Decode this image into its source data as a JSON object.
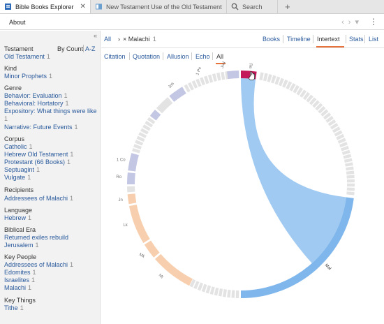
{
  "tabs": [
    {
      "label": "Bible Books Explorer",
      "close": "✕",
      "icon": "explorer-icon"
    },
    {
      "label": "New Testament Use of the Old Testament",
      "icon": "book-icon"
    },
    {
      "label": "Search",
      "icon": "search-icon"
    }
  ],
  "new_tab": "+",
  "toolbar": {
    "about": "About",
    "back": "‹",
    "forward": "›",
    "dropdown": "▾",
    "menu": "⋮"
  },
  "sidebar": {
    "collapse": "«",
    "sort_by_count": "By Count",
    "sort_az": "A-Z",
    "facets": [
      {
        "title": "Testament",
        "items": [
          {
            "label": "Old Testament",
            "count": "1"
          }
        ]
      },
      {
        "title": "Kind",
        "items": [
          {
            "label": "Minor Prophets",
            "count": "1"
          }
        ]
      },
      {
        "title": "Genre",
        "items": [
          {
            "label": "Behavior: Evaluation",
            "count": "1"
          },
          {
            "label": "Behavioral: Hortatory",
            "count": "1"
          },
          {
            "label": "Expository: What things were like",
            "count": "1"
          },
          {
            "label": "Narrative: Future Events",
            "count": "1"
          }
        ]
      },
      {
        "title": "Corpus",
        "items": [
          {
            "label": "Catholic",
            "count": "1"
          },
          {
            "label": "Hebrew Old Testament",
            "count": "1"
          },
          {
            "label": "Protestant (66 Books)",
            "count": "1"
          },
          {
            "label": "Septuagint",
            "count": "1"
          },
          {
            "label": "Vulgate",
            "count": "1"
          }
        ]
      },
      {
        "title": "Recipients",
        "items": [
          {
            "label": "Addressees of Malachi",
            "count": "1"
          }
        ]
      },
      {
        "title": "Language",
        "items": [
          {
            "label": "Hebrew",
            "count": "1"
          }
        ]
      },
      {
        "title": "Biblical Era",
        "items": [
          {
            "label": "Returned exiles rebuild",
            "count": ""
          },
          {
            "label": "Jerusalem",
            "count": "1"
          }
        ]
      },
      {
        "title": "Key People",
        "items": [
          {
            "label": "Addressees of Malachi",
            "count": "1"
          },
          {
            "label": "Edomites",
            "count": "1"
          },
          {
            "label": "Israelites",
            "count": "1"
          },
          {
            "label": "Malachi",
            "count": "1"
          }
        ]
      },
      {
        "title": "Key Things",
        "items": [
          {
            "label": "Tithe",
            "count": "1"
          }
        ]
      }
    ]
  },
  "main": {
    "breadcrumb": {
      "all": "All",
      "sep": "›",
      "current": "× Malachi",
      "count": "1"
    },
    "view_tabs": [
      "Books",
      "Timeline",
      "Intertext",
      "Stats",
      "List"
    ],
    "active_view": "Intertext",
    "filters": [
      "Citation",
      "Quotation",
      "Allusion",
      "Echo",
      "All"
    ],
    "active_filter": "All"
  },
  "chord": {
    "colors": {
      "ot": "#e3e3e3",
      "nt_epistles": "#c4c7e3",
      "gospels": "#f8cfae",
      "malachi": "#7fb6ec",
      "selected": "#c3185a",
      "link": "#8fc1ef"
    },
    "labels": {
      "Rev": "Re",
      "Jude": "Jud",
      "Heb": "1 Pe",
      "Jas": "Jas",
      "1Cor": "1 Co",
      "Rom": "Ro",
      "John": "Jn",
      "Luke": "Lk",
      "Mark": "Mk",
      "Matt": "Mt",
      "Mal": "Mal"
    }
  }
}
